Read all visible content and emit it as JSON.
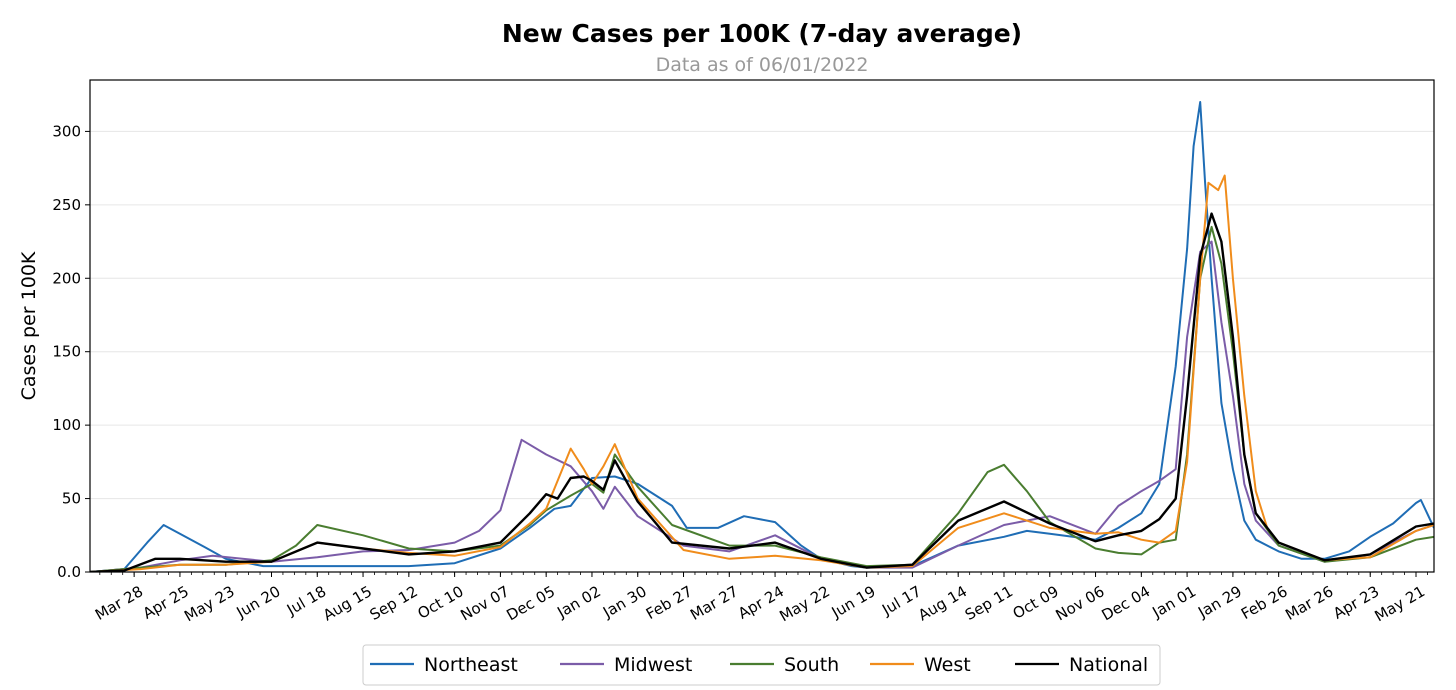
{
  "chart_data": {
    "type": "line",
    "title": "New Cases per 100K (7-day average)",
    "subtitle": "Data as of 06/01/2022",
    "xlabel": "",
    "ylabel": "Cases per 100K",
    "ylim": [
      0,
      335
    ],
    "yticks": [
      0,
      50,
      100,
      150,
      200,
      250,
      300
    ],
    "ytick_labels": [
      "0.0",
      "50",
      "100",
      "150",
      "200",
      "250",
      "300"
    ],
    "xlim": [
      "2020-03-01",
      "2022-06-01"
    ],
    "xticks": [
      "2020-03-28",
      "2020-04-25",
      "2020-05-23",
      "2020-06-20",
      "2020-07-18",
      "2020-08-15",
      "2020-09-12",
      "2020-10-10",
      "2020-11-07",
      "2020-12-05",
      "2021-01-02",
      "2021-01-30",
      "2021-02-27",
      "2021-03-27",
      "2021-04-24",
      "2021-05-22",
      "2021-06-19",
      "2021-07-17",
      "2021-08-14",
      "2021-09-11",
      "2021-10-09",
      "2021-11-06",
      "2021-12-04",
      "2022-01-01",
      "2022-01-29",
      "2022-02-26",
      "2022-03-26",
      "2022-04-23",
      "2022-05-21"
    ],
    "xtick_labels": [
      "Mar 28",
      "Apr 25",
      "May 23",
      "Jun 20",
      "Jul 18",
      "Aug 15",
      "Sep 12",
      "Oct 10",
      "Nov 07",
      "Dec 05",
      "Jan 02",
      "Jan 30",
      "Feb 27",
      "Mar 27",
      "Apr 24",
      "May 22",
      "Jun 19",
      "Jul 17",
      "Aug 14",
      "Sep 11",
      "Oct 09",
      "Nov 06",
      "Dec 04",
      "Jan 01",
      "Jan 29",
      "Feb 26",
      "Mar 26",
      "Apr 23",
      "May 21"
    ],
    "grid": "horizontal",
    "legend_position": "bottom-center",
    "series": [
      {
        "name": "Northeast",
        "color": "#1f6db5",
        "x": [
          "2020-03-01",
          "2020-03-22",
          "2020-04-05",
          "2020-04-15",
          "2020-04-25",
          "2020-05-10",
          "2020-05-23",
          "2020-06-15",
          "2020-07-18",
          "2020-08-15",
          "2020-09-12",
          "2020-10-10",
          "2020-11-07",
          "2020-11-25",
          "2020-12-10",
          "2020-12-20",
          "2021-01-02",
          "2021-01-16",
          "2021-01-30",
          "2021-02-20",
          "2021-03-01",
          "2021-03-20",
          "2021-04-05",
          "2021-04-24",
          "2021-05-10",
          "2021-05-22",
          "2021-06-10",
          "2021-06-19",
          "2021-07-17",
          "2021-08-14",
          "2021-09-11",
          "2021-09-25",
          "2021-10-09",
          "2021-11-06",
          "2021-11-20",
          "2021-12-04",
          "2021-12-15",
          "2021-12-25",
          "2022-01-01",
          "2022-01-05",
          "2022-01-09",
          "2022-01-12",
          "2022-01-16",
          "2022-01-22",
          "2022-01-29",
          "2022-02-05",
          "2022-02-12",
          "2022-02-26",
          "2022-03-12",
          "2022-03-26",
          "2022-04-10",
          "2022-04-23",
          "2022-05-07",
          "2022-05-21",
          "2022-05-24",
          "2022-06-01"
        ],
        "y": [
          0,
          2,
          20,
          32,
          26,
          17,
          9,
          4,
          4,
          4,
          4,
          6,
          16,
          30,
          43,
          45,
          64,
          65,
          60,
          45,
          30,
          30,
          38,
          34,
          18,
          9,
          4,
          3,
          4,
          18,
          24,
          28,
          26,
          22,
          30,
          40,
          60,
          140,
          220,
          290,
          320,
          265,
          200,
          115,
          70,
          35,
          22,
          14,
          9,
          9,
          14,
          24,
          33,
          47,
          49,
          30
        ]
      },
      {
        "name": "Midwest",
        "color": "#7b5ca8",
        "x": [
          "2020-03-01",
          "2020-04-01",
          "2020-04-25",
          "2020-05-15",
          "2020-06-20",
          "2020-07-18",
          "2020-08-15",
          "2020-09-12",
          "2020-10-10",
          "2020-10-25",
          "2020-11-07",
          "2020-11-20",
          "2020-12-05",
          "2020-12-20",
          "2021-01-02",
          "2021-01-09",
          "2021-01-16",
          "2021-01-30",
          "2021-02-27",
          "2021-03-27",
          "2021-04-24",
          "2021-05-22",
          "2021-06-19",
          "2021-07-17",
          "2021-08-14",
          "2021-09-11",
          "2021-10-09",
          "2021-11-06",
          "2021-11-20",
          "2021-12-04",
          "2021-12-15",
          "2021-12-25",
          "2022-01-01",
          "2022-01-09",
          "2022-01-16",
          "2022-01-22",
          "2022-01-29",
          "2022-02-05",
          "2022-02-12",
          "2022-02-26",
          "2022-03-26",
          "2022-04-23",
          "2022-05-21",
          "2022-06-01"
        ],
        "y": [
          0,
          3,
          8,
          11,
          7,
          10,
          14,
          15,
          20,
          28,
          42,
          90,
          80,
          72,
          55,
          43,
          58,
          38,
          18,
          14,
          25,
          9,
          3,
          3,
          18,
          32,
          38,
          26,
          45,
          55,
          62,
          70,
          160,
          218,
          225,
          170,
          120,
          60,
          35,
          18,
          7,
          12,
          28,
          32
        ]
      },
      {
        "name": "South",
        "color": "#4a7d30",
        "x": [
          "2020-03-01",
          "2020-04-01",
          "2020-04-25",
          "2020-05-23",
          "2020-06-20",
          "2020-07-05",
          "2020-07-18",
          "2020-08-15",
          "2020-09-12",
          "2020-10-10",
          "2020-11-07",
          "2020-11-25",
          "2020-12-05",
          "2020-12-20",
          "2021-01-02",
          "2021-01-09",
          "2021-01-16",
          "2021-01-30",
          "2021-02-20",
          "2021-03-27",
          "2021-04-24",
          "2021-05-22",
          "2021-06-19",
          "2021-07-17",
          "2021-08-14",
          "2021-09-01",
          "2021-09-11",
          "2021-09-25",
          "2021-10-09",
          "2021-11-06",
          "2021-11-20",
          "2021-12-04",
          "2021-12-15",
          "2021-12-25",
          "2022-01-01",
          "2022-01-09",
          "2022-01-16",
          "2022-01-22",
          "2022-01-29",
          "2022-02-05",
          "2022-02-12",
          "2022-02-26",
          "2022-03-26",
          "2022-04-23",
          "2022-05-21",
          "2022-06-01"
        ],
        "y": [
          0,
          3,
          5,
          5,
          8,
          18,
          32,
          25,
          16,
          14,
          18,
          32,
          42,
          52,
          60,
          54,
          80,
          58,
          32,
          18,
          18,
          10,
          4,
          5,
          40,
          68,
          73,
          55,
          34,
          16,
          13,
          12,
          20,
          22,
          80,
          200,
          235,
          210,
          150,
          80,
          40,
          18,
          7,
          10,
          22,
          24
        ]
      },
      {
        "name": "West",
        "color": "#f08c1b",
        "x": [
          "2020-03-01",
          "2020-04-01",
          "2020-04-25",
          "2020-05-23",
          "2020-06-20",
          "2020-07-18",
          "2020-08-15",
          "2020-09-12",
          "2020-10-10",
          "2020-11-07",
          "2020-11-25",
          "2020-12-05",
          "2020-12-20",
          "2020-12-28",
          "2021-01-02",
          "2021-01-09",
          "2021-01-16",
          "2021-01-30",
          "2021-02-27",
          "2021-03-27",
          "2021-04-24",
          "2021-05-22",
          "2021-06-19",
          "2021-07-17",
          "2021-08-14",
          "2021-09-11",
          "2021-10-09",
          "2021-11-06",
          "2021-11-20",
          "2021-12-04",
          "2021-12-15",
          "2021-12-25",
          "2022-01-01",
          "2022-01-09",
          "2022-01-14",
          "2022-01-20",
          "2022-01-24",
          "2022-01-29",
          "2022-02-05",
          "2022-02-12",
          "2022-02-19",
          "2022-02-26",
          "2022-03-26",
          "2022-04-23",
          "2022-05-21",
          "2022-06-01"
        ],
        "y": [
          0,
          2,
          5,
          5,
          7,
          20,
          16,
          13,
          11,
          17,
          33,
          43,
          84,
          70,
          60,
          72,
          87,
          50,
          15,
          9,
          11,
          8,
          3,
          4,
          30,
          40,
          30,
          26,
          27,
          22,
          20,
          28,
          75,
          200,
          265,
          260,
          270,
          200,
          120,
          55,
          30,
          20,
          8,
          10,
          28,
          32
        ]
      },
      {
        "name": "National",
        "color": "#000000",
        "x": [
          "2020-03-01",
          "2020-03-22",
          "2020-04-10",
          "2020-04-25",
          "2020-05-23",
          "2020-06-20",
          "2020-07-18",
          "2020-08-15",
          "2020-09-12",
          "2020-10-10",
          "2020-11-07",
          "2020-11-25",
          "2020-12-05",
          "2020-12-12",
          "2020-12-20",
          "2020-12-28",
          "2021-01-02",
          "2021-01-09",
          "2021-01-16",
          "2021-01-30",
          "2021-02-20",
          "2021-03-27",
          "2021-04-24",
          "2021-05-22",
          "2021-06-19",
          "2021-07-17",
          "2021-08-14",
          "2021-09-11",
          "2021-10-09",
          "2021-11-06",
          "2021-11-20",
          "2021-12-04",
          "2021-12-15",
          "2021-12-25",
          "2022-01-01",
          "2022-01-09",
          "2022-01-16",
          "2022-01-22",
          "2022-01-29",
          "2022-02-05",
          "2022-02-12",
          "2022-02-26",
          "2022-03-26",
          "2022-04-23",
          "2022-05-21",
          "2022-06-01"
        ],
        "y": [
          0,
          1,
          9,
          9,
          7,
          7,
          20,
          16,
          12,
          14,
          20,
          40,
          53,
          50,
          64,
          65,
          62,
          56,
          76,
          48,
          20,
          16,
          20,
          9,
          3,
          5,
          35,
          48,
          33,
          21,
          25,
          28,
          36,
          50,
          120,
          215,
          244,
          225,
          160,
          80,
          40,
          20,
          8,
          12,
          31,
          33
        ]
      }
    ]
  }
}
